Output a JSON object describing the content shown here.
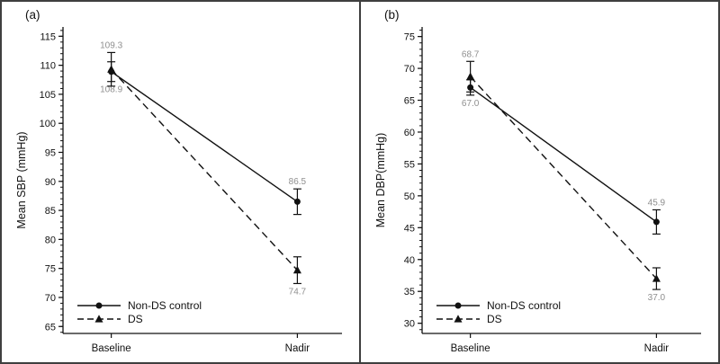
{
  "colors": {
    "line": "#111111",
    "text": "#111111",
    "data_label": "#8f8f8f",
    "border": "#3f3f3f",
    "background": "#ffffff"
  },
  "chart_data": [
    {
      "type": "line",
      "panel_id": "a",
      "panel_label": "(a)",
      "ylabel": "Mean SBP (mmHg)",
      "categories": [
        "Baseline",
        "Nadir"
      ],
      "yticks": [
        65,
        70,
        75,
        80,
        85,
        90,
        95,
        100,
        105,
        110,
        115
      ],
      "ylim": [
        63.8,
        116.6
      ],
      "minor_step": 1,
      "grid": false,
      "legend_position": "bottom-left",
      "legend": [
        "Non-DS control",
        "DS"
      ],
      "series": [
        {
          "name": "Non-DS control",
          "marker": "circle",
          "dash": false,
          "values": [
            108.9,
            86.5
          ],
          "errors": [
            1.7,
            2.2
          ],
          "point_labels": [
            "108.9",
            "86.5"
          ],
          "label_pos": [
            "below",
            "above"
          ]
        },
        {
          "name": "DS",
          "marker": "triangle",
          "dash": true,
          "values": [
            109.3,
            74.7
          ],
          "errors": [
            2.9,
            2.3
          ],
          "point_labels": [
            "109.3",
            "74.7"
          ],
          "label_pos": [
            "above",
            "below"
          ]
        }
      ]
    },
    {
      "type": "line",
      "panel_id": "b",
      "panel_label": "(b)",
      "ylabel": "Mean DBP(mmHg)",
      "categories": [
        "Baseline",
        "Nadir"
      ],
      "yticks": [
        30,
        35,
        40,
        45,
        50,
        55,
        60,
        65,
        70,
        75
      ],
      "ylim": [
        28.4,
        76.5
      ],
      "minor_step": 1,
      "grid": false,
      "legend_position": "bottom-left",
      "legend": [
        "Non-DS control",
        "DS"
      ],
      "series": [
        {
          "name": "Non-DS control",
          "marker": "circle",
          "dash": false,
          "values": [
            67.0,
            45.9
          ],
          "errors": [
            1.2,
            1.9
          ],
          "point_labels": [
            "67.0",
            "45.9"
          ],
          "label_pos": [
            "below",
            "above"
          ]
        },
        {
          "name": "DS",
          "marker": "triangle",
          "dash": true,
          "values": [
            68.7,
            37.0
          ],
          "errors": [
            2.4,
            1.7
          ],
          "point_labels": [
            "68.7",
            "37.0"
          ],
          "label_pos": [
            "above",
            "below"
          ]
        }
      ]
    }
  ]
}
